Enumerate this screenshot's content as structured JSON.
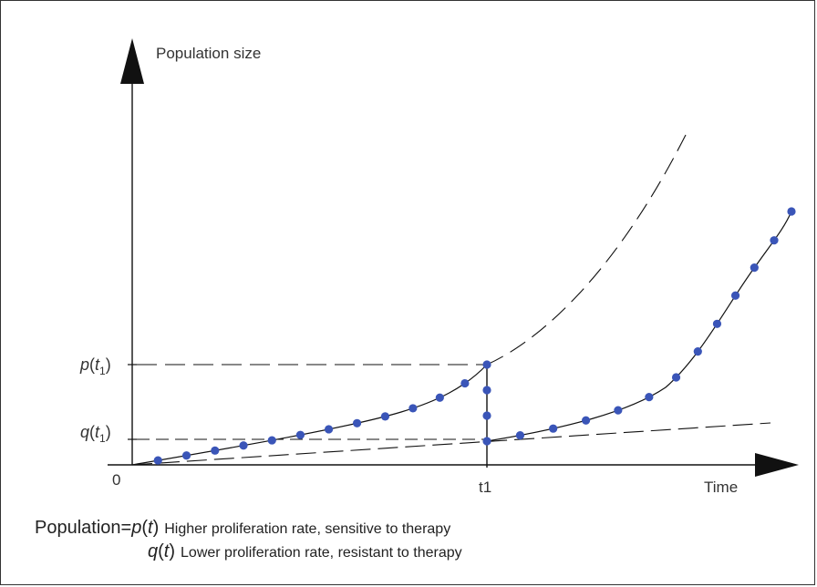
{
  "diagram": {
    "y_axis_label": "Population size",
    "x_axis_label": "Time",
    "origin_label": "0",
    "t1_label": "t1",
    "p_label": {
      "fn": "p",
      "sub": "1"
    },
    "q_label": {
      "fn": "q",
      "sub": "1"
    }
  },
  "legend": {
    "prefix": "Population",
    "equals": "=",
    "rows": [
      {
        "symbol_fn": "p",
        "symbol_arg": "t",
        "description": "Higher proliferation rate, sensitive to therapy"
      },
      {
        "symbol_fn": "q",
        "symbol_arg": "t",
        "description": "Lower proliferation rate, resistant to therapy"
      }
    ]
  },
  "colors": {
    "dot": "#3a55b8",
    "line": "#111111",
    "axis": "#111111"
  }
}
